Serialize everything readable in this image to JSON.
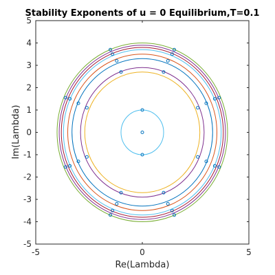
{
  "chart_data": {
    "type": "scatter",
    "title": "Stability Exponents of u = 0 Equilibrium,T=0.1",
    "xlabel": "Re(Lambda)",
    "ylabel": "Im(Lambda)",
    "xlim": [
      -5,
      5
    ],
    "ylim": [
      -5,
      5
    ],
    "x_ticks": [
      -5,
      0,
      5
    ],
    "y_ticks": [
      -5,
      -4,
      -3,
      -2,
      -1,
      0,
      1,
      2,
      3,
      4,
      5
    ],
    "x_tick_labels": [
      "-5",
      "0",
      "5"
    ],
    "y_tick_labels": [
      "-5",
      "-4",
      "-3",
      "-2",
      "-1",
      "0",
      "1",
      "2",
      "3",
      "4",
      "5"
    ],
    "grid": false,
    "legend": "none",
    "circles": [
      {
        "radius": 1.0,
        "color": "#4DBEEE"
      },
      {
        "radius": 2.7,
        "color": "#EDB120"
      },
      {
        "radius": 2.9,
        "color": "#7E2F8E"
      },
      {
        "radius": 3.3,
        "color": "#0072BD"
      },
      {
        "radius": 3.5,
        "color": "#D95319"
      },
      {
        "radius": 3.7,
        "color": "#4DBEEE"
      },
      {
        "radius": 3.8,
        "color": "#A2142F"
      },
      {
        "radius": 3.9,
        "color": "#7E2F8E"
      },
      {
        "radius": 4.0,
        "color": "#77AC30"
      }
    ],
    "points": [
      {
        "x": 0,
        "y": 0
      },
      {
        "x": 0,
        "y": 1
      },
      {
        "x": 0,
        "y": -1
      },
      {
        "x": -1.0,
        "y": 2.7
      },
      {
        "x": 1.0,
        "y": 2.7
      },
      {
        "x": -1.0,
        "y": -2.7
      },
      {
        "x": 1.0,
        "y": -2.7
      },
      {
        "x": -2.6,
        "y": 1.1
      },
      {
        "x": 2.6,
        "y": 1.1
      },
      {
        "x": -2.6,
        "y": -1.1
      },
      {
        "x": 2.6,
        "y": -1.1
      },
      {
        "x": -1.2,
        "y": 3.2
      },
      {
        "x": 1.2,
        "y": 3.2
      },
      {
        "x": -1.2,
        "y": -3.2
      },
      {
        "x": 1.2,
        "y": -3.2
      },
      {
        "x": -3.0,
        "y": 1.3
      },
      {
        "x": 3.0,
        "y": 1.3
      },
      {
        "x": -3.0,
        "y": -1.3
      },
      {
        "x": 3.0,
        "y": -1.3
      },
      {
        "x": -1.4,
        "y": 3.5
      },
      {
        "x": 1.4,
        "y": 3.5
      },
      {
        "x": -1.4,
        "y": -3.5
      },
      {
        "x": 1.4,
        "y": -3.5
      },
      {
        "x": -3.4,
        "y": 1.5
      },
      {
        "x": 3.4,
        "y": 1.5
      },
      {
        "x": -3.4,
        "y": -1.5
      },
      {
        "x": 3.4,
        "y": -1.5
      },
      {
        "x": -1.5,
        "y": 3.7
      },
      {
        "x": 1.5,
        "y": 3.7
      },
      {
        "x": -1.5,
        "y": -3.7
      },
      {
        "x": 1.5,
        "y": -3.7
      },
      {
        "x": -3.6,
        "y": 1.55
      },
      {
        "x": 3.6,
        "y": 1.55
      },
      {
        "x": -3.6,
        "y": -1.55
      },
      {
        "x": 3.6,
        "y": -1.55
      }
    ],
    "marker": "circle",
    "marker_color": "#0072BD"
  }
}
